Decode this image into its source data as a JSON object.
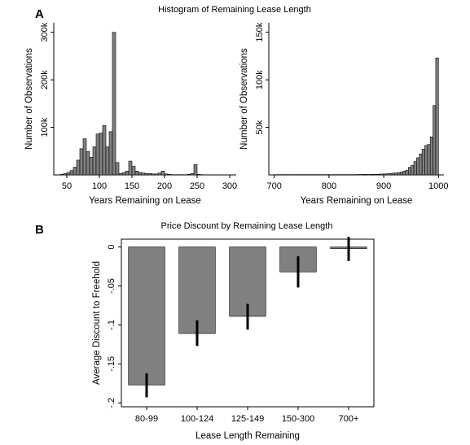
{
  "panels": {
    "a_label": "A",
    "b_label": "B",
    "a_title": "Histogram of Remaining Lease Length",
    "b_title": "Price Discount by Remaining Lease Length"
  },
  "chart_data": [
    {
      "type": "bar",
      "subtype": "histogram",
      "xlabel": "Years Remaining on Lease",
      "ylabel": "Number of Observations",
      "xlim": [
        30,
        310
      ],
      "ylim": [
        0,
        320000
      ],
      "xticks": [
        50,
        100,
        150,
        200,
        250,
        300
      ],
      "xtick_labels": [
        "50",
        "100",
        "150",
        "200",
        "250",
        "300"
      ],
      "yticks": [
        100000,
        200000,
        300000
      ],
      "ytick_labels": [
        "100k",
        "200k",
        "300k"
      ],
      "bin_width": 5,
      "bins": [
        [
          40,
          1000
        ],
        [
          45,
          3000
        ],
        [
          50,
          5000
        ],
        [
          55,
          9000
        ],
        [
          60,
          16000
        ],
        [
          65,
          31000
        ],
        [
          70,
          55000
        ],
        [
          75,
          76000
        ],
        [
          80,
          49000
        ],
        [
          85,
          37000
        ],
        [
          90,
          59000
        ],
        [
          95,
          86000
        ],
        [
          100,
          88000
        ],
        [
          105,
          104000
        ],
        [
          110,
          59000
        ],
        [
          115,
          91000
        ],
        [
          120,
          300000
        ],
        [
          125,
          26000
        ],
        [
          130,
          3000
        ],
        [
          135,
          5000
        ],
        [
          140,
          8000
        ],
        [
          145,
          29000
        ],
        [
          150,
          18000
        ],
        [
          155,
          8000
        ],
        [
          160,
          5000
        ],
        [
          165,
          4000
        ],
        [
          170,
          3000
        ],
        [
          175,
          3000
        ],
        [
          180,
          2000
        ],
        [
          185,
          2000
        ],
        [
          190,
          4000
        ],
        [
          195,
          8000
        ],
        [
          200,
          2000
        ],
        [
          205,
          1000
        ],
        [
          210,
          500
        ],
        [
          215,
          500
        ],
        [
          220,
          500
        ],
        [
          225,
          500
        ],
        [
          230,
          500
        ],
        [
          235,
          1000
        ],
        [
          240,
          3000
        ],
        [
          245,
          22000
        ],
        [
          250,
          1000
        ],
        [
          255,
          500
        ],
        [
          260,
          300
        ]
      ]
    },
    {
      "type": "bar",
      "subtype": "histogram",
      "xlabel": "Years Remaining on Lease",
      "ylabel": "Number of Observations",
      "xlim": [
        690,
        1010
      ],
      "ylim": [
        0,
        160000
      ],
      "xticks": [
        700,
        800,
        900,
        1000
      ],
      "xtick_labels": [
        "700",
        "800",
        "900",
        "1000"
      ],
      "yticks": [
        50000,
        100000,
        150000
      ],
      "ytick_labels": [
        "50k",
        "100k",
        "150k"
      ],
      "bin_width": 5,
      "bins": [
        [
          700,
          300
        ],
        [
          705,
          300
        ],
        [
          710,
          300
        ],
        [
          715,
          300
        ],
        [
          720,
          300
        ],
        [
          725,
          300
        ],
        [
          730,
          300
        ],
        [
          735,
          300
        ],
        [
          740,
          300
        ],
        [
          745,
          300
        ],
        [
          750,
          300
        ],
        [
          755,
          300
        ],
        [
          760,
          300
        ],
        [
          765,
          300
        ],
        [
          770,
          300
        ],
        [
          775,
          300
        ],
        [
          780,
          300
        ],
        [
          785,
          300
        ],
        [
          790,
          300
        ],
        [
          795,
          300
        ],
        [
          800,
          300
        ],
        [
          805,
          300
        ],
        [
          810,
          300
        ],
        [
          815,
          300
        ],
        [
          820,
          300
        ],
        [
          825,
          300
        ],
        [
          830,
          300
        ],
        [
          835,
          300
        ],
        [
          840,
          300
        ],
        [
          845,
          300
        ],
        [
          850,
          400
        ],
        [
          855,
          400
        ],
        [
          860,
          500
        ],
        [
          865,
          500
        ],
        [
          870,
          400
        ],
        [
          875,
          500
        ],
        [
          880,
          500
        ],
        [
          885,
          600
        ],
        [
          890,
          800
        ],
        [
          895,
          900
        ],
        [
          900,
          1000
        ],
        [
          905,
          1200
        ],
        [
          910,
          1500
        ],
        [
          915,
          1800
        ],
        [
          920,
          2000
        ],
        [
          925,
          2500
        ],
        [
          930,
          3000
        ],
        [
          935,
          4000
        ],
        [
          940,
          5000
        ],
        [
          945,
          8000
        ],
        [
          950,
          10000
        ],
        [
          955,
          14000
        ],
        [
          960,
          18000
        ],
        [
          965,
          22000
        ],
        [
          970,
          27000
        ],
        [
          975,
          31000
        ],
        [
          980,
          32000
        ],
        [
          985,
          40000
        ],
        [
          990,
          73000
        ],
        [
          995,
          123000
        ]
      ]
    },
    {
      "type": "bar",
      "xlabel": "Lease Length Remaining",
      "ylabel": "Average Discount to Freehold",
      "ylim": [
        -0.205,
        0.01
      ],
      "yticks": [
        0,
        -0.05,
        -0.1,
        -0.15,
        -0.2
      ],
      "ytick_labels": [
        "0",
        "-.05",
        "-.1",
        "-.15",
        "-.2"
      ],
      "categories": [
        "80-99",
        "100-124",
        "125-149",
        "150-300",
        "700+"
      ],
      "values": [
        -0.177,
        -0.111,
        -0.089,
        -0.032,
        -0.002
      ],
      "ci_low": [
        -0.193,
        -0.127,
        -0.106,
        -0.052,
        -0.018
      ],
      "ci_high": [
        -0.162,
        -0.094,
        -0.073,
        -0.012,
        0.013
      ]
    }
  ]
}
